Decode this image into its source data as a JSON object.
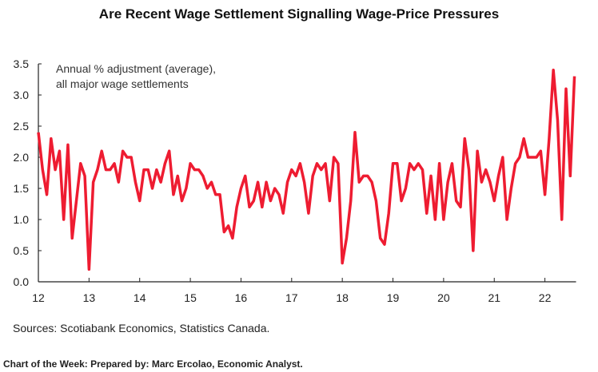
{
  "chart_data": {
    "type": "line",
    "title": "Are Recent Wage Settlement Signalling Wage-Price Pressures",
    "annotation": [
      "Annual % adjustment (average),",
      "all major wage settlements"
    ],
    "xlabel": "",
    "ylabel": "",
    "ylim": [
      0,
      3.5
    ],
    "yticks": [
      "0.0",
      "0.5",
      "1.0",
      "1.5",
      "2.0",
      "2.5",
      "3.0",
      "3.5"
    ],
    "xticks": [
      "12",
      "13",
      "14",
      "15",
      "16",
      "17",
      "18",
      "19",
      "20",
      "21",
      "22"
    ],
    "x_start": "2012-01",
    "frequency": "monthly",
    "color": "#ee1c31",
    "grid": false,
    "values": [
      2.4,
      1.8,
      1.4,
      2.3,
      1.8,
      2.1,
      1.0,
      2.2,
      0.7,
      1.3,
      1.9,
      1.7,
      0.2,
      1.6,
      1.8,
      2.1,
      1.8,
      1.8,
      1.9,
      1.6,
      2.1,
      2.0,
      2.0,
      1.6,
      1.3,
      1.8,
      1.8,
      1.5,
      1.8,
      1.6,
      1.9,
      2.1,
      1.4,
      1.7,
      1.3,
      1.5,
      1.9,
      1.8,
      1.8,
      1.7,
      1.5,
      1.6,
      1.4,
      1.4,
      0.8,
      0.9,
      0.7,
      1.2,
      1.5,
      1.7,
      1.2,
      1.3,
      1.6,
      1.2,
      1.6,
      1.3,
      1.5,
      1.4,
      1.1,
      1.6,
      1.8,
      1.7,
      1.9,
      1.6,
      1.1,
      1.7,
      1.9,
      1.8,
      1.9,
      1.3,
      2.0,
      1.9,
      0.3,
      0.7,
      1.3,
      2.4,
      1.6,
      1.7,
      1.7,
      1.6,
      1.3,
      0.7,
      0.6,
      1.1,
      1.9,
      1.9,
      1.3,
      1.5,
      1.9,
      1.8,
      1.9,
      1.8,
      1.1,
      1.7,
      1.0,
      1.9,
      1.0,
      1.6,
      1.9,
      1.3,
      1.2,
      2.3,
      1.8,
      0.5,
      2.1,
      1.6,
      1.8,
      1.6,
      1.3,
      1.7,
      2.0,
      1.0,
      1.5,
      1.9,
      2.0,
      2.3,
      2.0,
      2.0,
      2.0,
      2.1,
      1.4,
      2.3,
      3.4,
      2.6,
      1.0,
      3.1,
      1.7,
      3.3
    ]
  },
  "sources": "Sources: Scotiabank Economics, Statistics Canada.",
  "footer": "Chart of the Week:  Prepared by: Marc Ercolao, Economic Analyst."
}
